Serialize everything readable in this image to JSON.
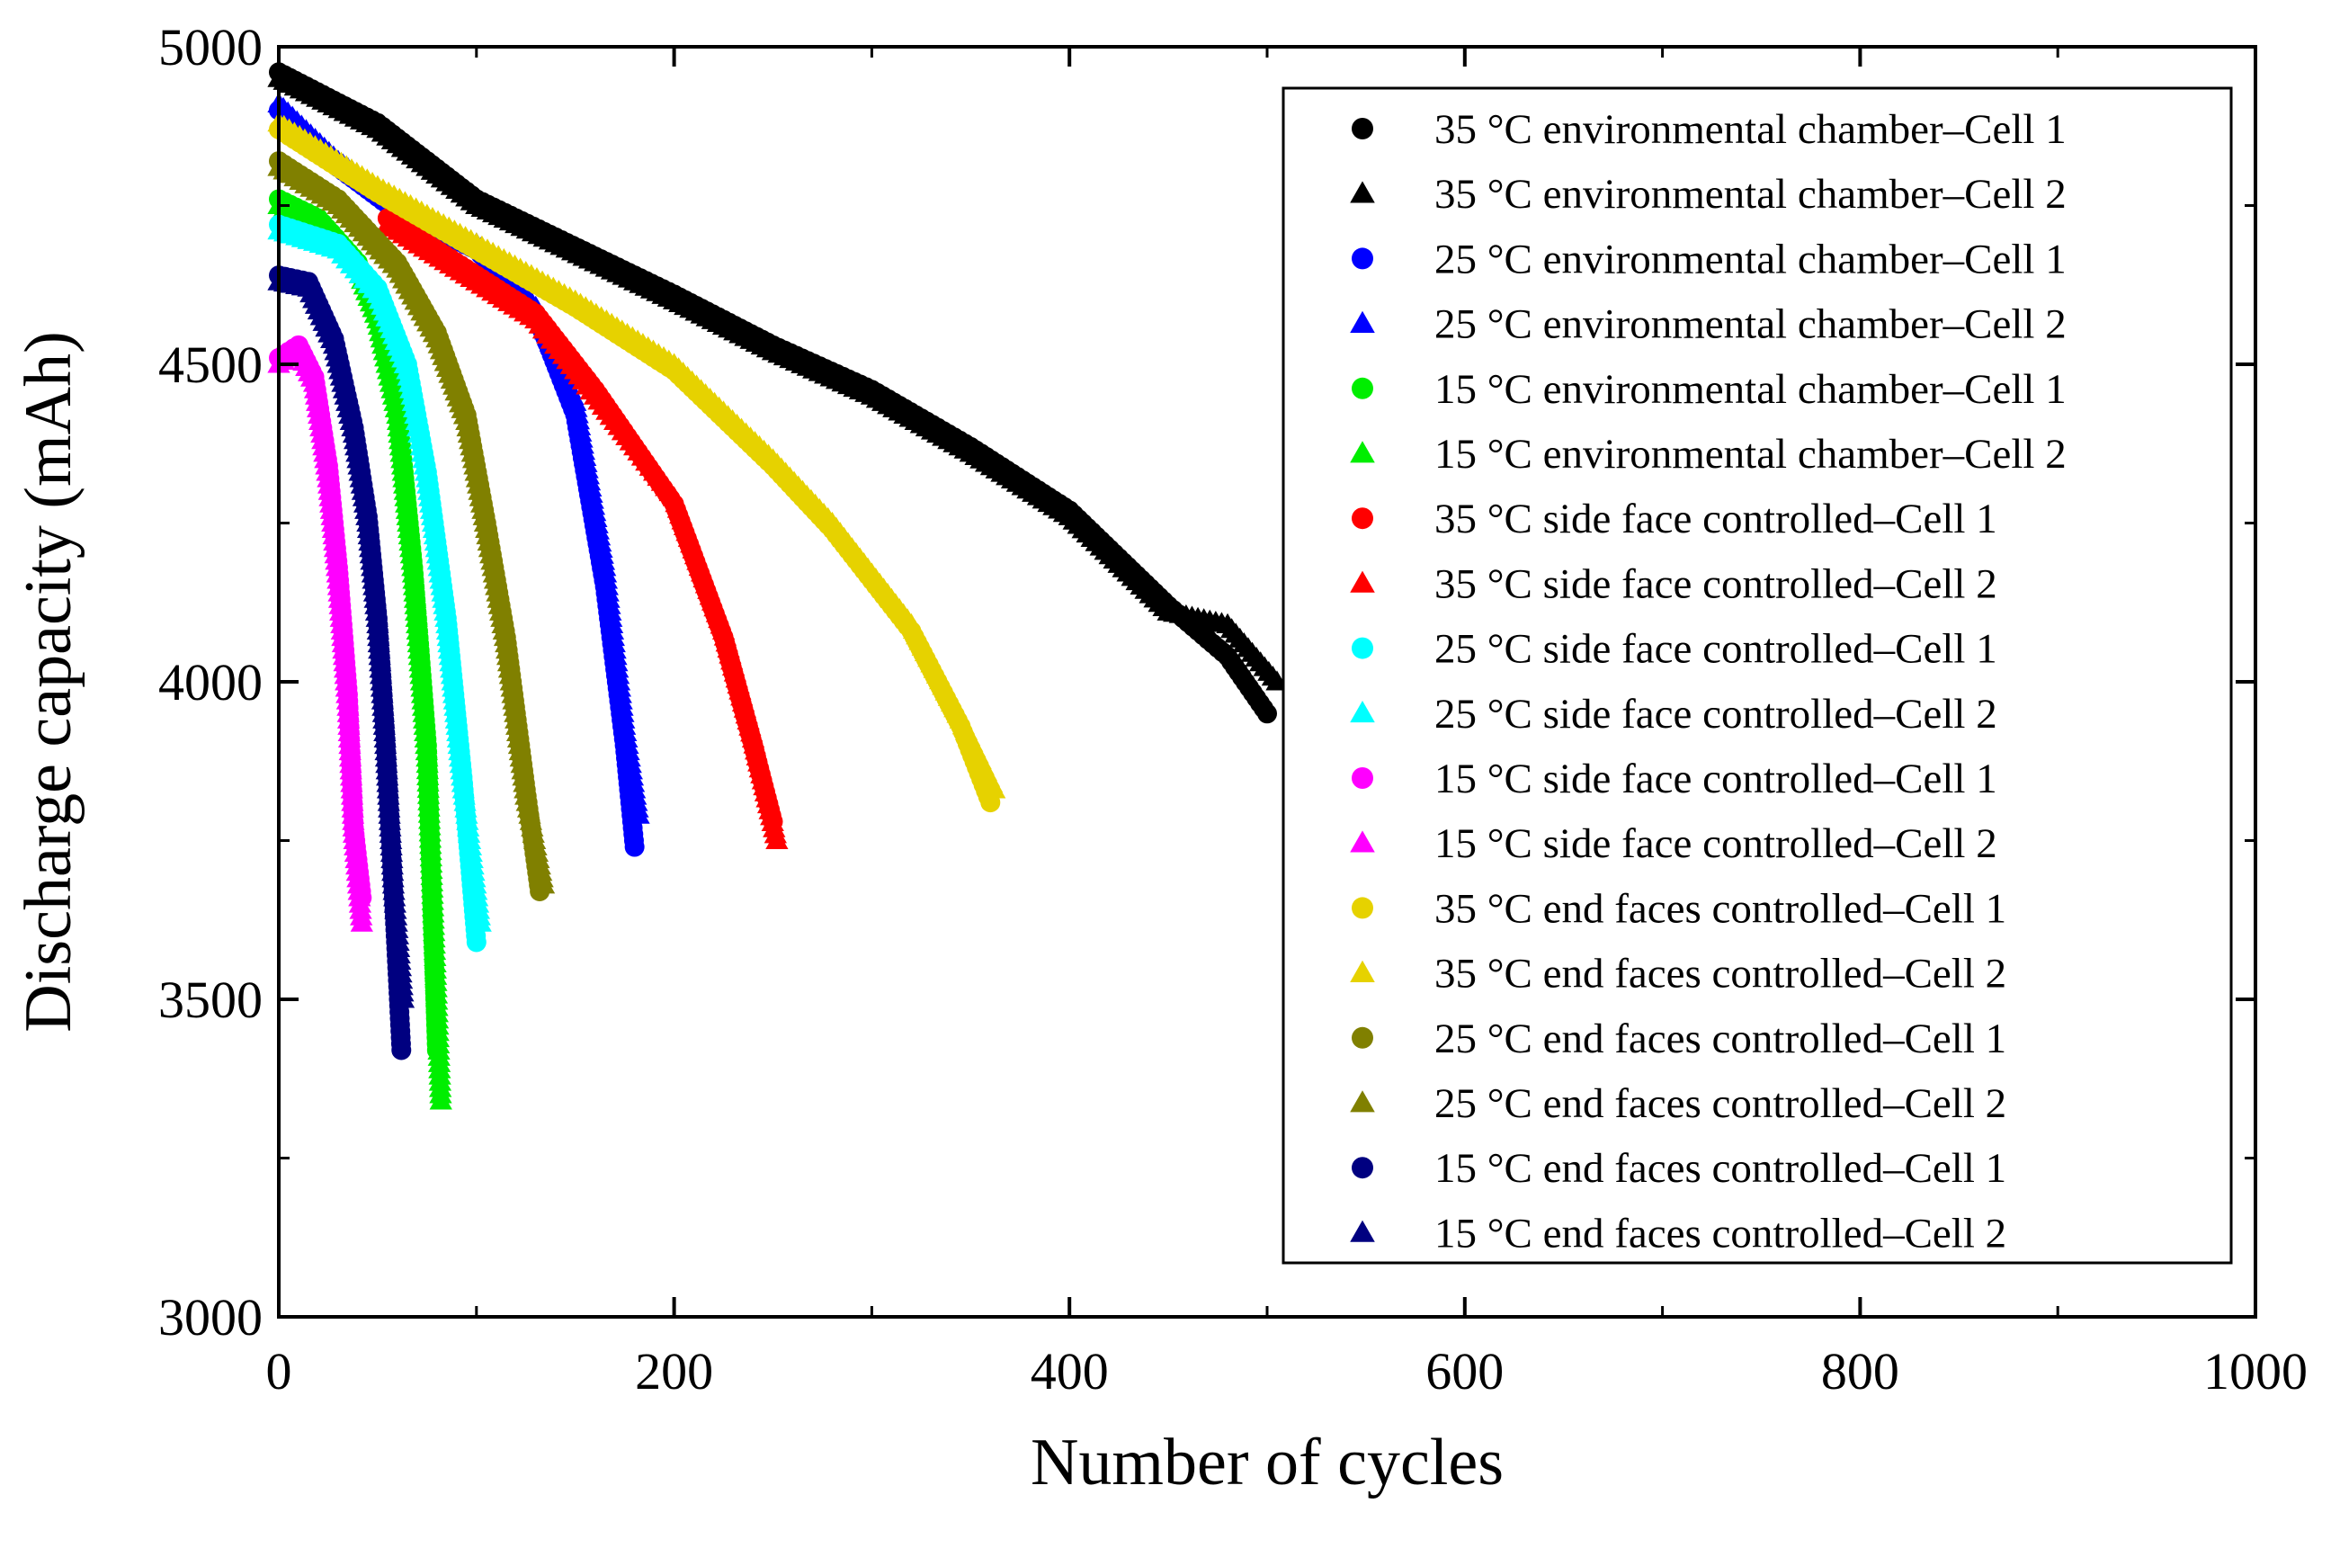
{
  "chart_data": {
    "type": "scatter",
    "title": "",
    "xlabel": "Number of cycles",
    "ylabel": "Discharge capacity (mAh)",
    "xlim": [
      0,
      1000
    ],
    "ylim": [
      3000,
      5000
    ],
    "xticks": [
      0,
      200,
      400,
      600,
      800,
      1000
    ],
    "yticks": [
      3000,
      3500,
      4000,
      4500,
      5000
    ],
    "grid": false,
    "legend_position": "top-right",
    "series": [
      {
        "name": "35 °C environmental chamber–Cell 1",
        "color": "#000000",
        "marker": "circle",
        "points": [
          [
            0,
            4960
          ],
          [
            50,
            4880
          ],
          [
            100,
            4760
          ],
          [
            200,
            4610
          ],
          [
            250,
            4530
          ],
          [
            300,
            4460
          ],
          [
            350,
            4370
          ],
          [
            400,
            4270
          ],
          [
            450,
            4120
          ],
          [
            480,
            4040
          ],
          [
            500,
            3950
          ]
        ]
      },
      {
        "name": "35 °C environmental chamber–Cell 2",
        "color": "#000000",
        "marker": "triangle",
        "points": [
          [
            0,
            4950
          ],
          [
            50,
            4870
          ],
          [
            100,
            4750
          ],
          [
            200,
            4600
          ],
          [
            250,
            4520
          ],
          [
            300,
            4450
          ],
          [
            350,
            4360
          ],
          [
            400,
            4260
          ],
          [
            450,
            4110
          ],
          [
            480,
            4090
          ],
          [
            505,
            4000
          ]
        ]
      },
      {
        "name": "25 °C environmental chamber–Cell 1",
        "color": "#0000ff",
        "marker": "circle",
        "points": [
          [
            0,
            4900
          ],
          [
            30,
            4810
          ],
          [
            60,
            4740
          ],
          [
            100,
            4680
          ],
          [
            130,
            4580
          ],
          [
            150,
            4420
          ],
          [
            165,
            4150
          ],
          [
            175,
            3900
          ],
          [
            180,
            3740
          ]
        ]
      },
      {
        "name": "25 °C environmental chamber–Cell 2",
        "color": "#0000ff",
        "marker": "triangle",
        "points": [
          [
            0,
            4910
          ],
          [
            30,
            4820
          ],
          [
            60,
            4750
          ],
          [
            100,
            4690
          ],
          [
            130,
            4590
          ],
          [
            150,
            4440
          ],
          [
            165,
            4180
          ],
          [
            175,
            3930
          ],
          [
            182,
            3790
          ]
        ]
      },
      {
        "name": "15 °C environmental chamber–Cell 1",
        "color": "#00ee00",
        "marker": "circle",
        "points": [
          [
            0,
            4760
          ],
          [
            20,
            4730
          ],
          [
            40,
            4660
          ],
          [
            50,
            4580
          ],
          [
            60,
            4430
          ],
          [
            68,
            4180
          ],
          [
            75,
            3900
          ],
          [
            80,
            3420
          ]
        ]
      },
      {
        "name": "15 °C environmental chamber–Cell 2",
        "color": "#00ee00",
        "marker": "triangle",
        "points": [
          [
            0,
            4750
          ],
          [
            20,
            4720
          ],
          [
            40,
            4650
          ],
          [
            50,
            4570
          ],
          [
            60,
            4420
          ],
          [
            68,
            4170
          ],
          [
            75,
            3880
          ],
          [
            82,
            3340
          ]
        ]
      },
      {
        "name": "35 °C side face controlled–Cell 1",
        "color": "#ff0000",
        "marker": "circle",
        "points": [
          [
            55,
            4730
          ],
          [
            100,
            4640
          ],
          [
            130,
            4580
          ],
          [
            160,
            4460
          ],
          [
            200,
            4280
          ],
          [
            225,
            4070
          ],
          [
            240,
            3900
          ],
          [
            250,
            3780
          ]
        ]
      },
      {
        "name": "35 °C side face controlled–Cell 2",
        "color": "#ff0000",
        "marker": "triangle",
        "points": [
          [
            55,
            4720
          ],
          [
            100,
            4630
          ],
          [
            130,
            4570
          ],
          [
            160,
            4450
          ],
          [
            200,
            4290
          ],
          [
            225,
            4080
          ],
          [
            240,
            3910
          ],
          [
            252,
            3750
          ]
        ]
      },
      {
        "name": "25 °C side face controlled–Cell 1",
        "color": "#00ffff",
        "marker": "circle",
        "points": [
          [
            0,
            4720
          ],
          [
            30,
            4690
          ],
          [
            50,
            4620
          ],
          [
            65,
            4500
          ],
          [
            75,
            4330
          ],
          [
            85,
            4100
          ],
          [
            93,
            3850
          ],
          [
            100,
            3590
          ]
        ]
      },
      {
        "name": "25 °C side face controlled–Cell 2",
        "color": "#00ffff",
        "marker": "triangle",
        "points": [
          [
            0,
            4710
          ],
          [
            30,
            4680
          ],
          [
            50,
            4610
          ],
          [
            65,
            4490
          ],
          [
            75,
            4320
          ],
          [
            85,
            4090
          ],
          [
            93,
            3840
          ],
          [
            102,
            3620
          ]
        ]
      },
      {
        "name": "15 °C side face controlled–Cell 1",
        "color": "#ff00ff",
        "marker": "circle",
        "points": [
          [
            0,
            4510
          ],
          [
            10,
            4530
          ],
          [
            18,
            4480
          ],
          [
            25,
            4340
          ],
          [
            30,
            4180
          ],
          [
            35,
            3980
          ],
          [
            38,
            3770
          ],
          [
            42,
            3660
          ]
        ]
      },
      {
        "name": "15 °C side face controlled–Cell 2",
        "color": "#ff00ff",
        "marker": "triangle",
        "points": [
          [
            0,
            4500
          ],
          [
            10,
            4520
          ],
          [
            18,
            4470
          ],
          [
            25,
            4320
          ],
          [
            30,
            4160
          ],
          [
            35,
            3960
          ],
          [
            38,
            3760
          ],
          [
            42,
            3620
          ]
        ]
      },
      {
        "name": "35 °C end faces controlled–Cell 1",
        "color": "#e6d200",
        "marker": "circle",
        "points": [
          [
            0,
            4870
          ],
          [
            50,
            4770
          ],
          [
            100,
            4680
          ],
          [
            150,
            4590
          ],
          [
            200,
            4490
          ],
          [
            250,
            4340
          ],
          [
            280,
            4240
          ],
          [
            320,
            4080
          ],
          [
            345,
            3930
          ],
          [
            360,
            3810
          ]
        ]
      },
      {
        "name": "35 °C end faces controlled–Cell 2",
        "color": "#e6d200",
        "marker": "triangle",
        "points": [
          [
            0,
            4880
          ],
          [
            50,
            4780
          ],
          [
            100,
            4690
          ],
          [
            150,
            4600
          ],
          [
            200,
            4500
          ],
          [
            250,
            4350
          ],
          [
            280,
            4250
          ],
          [
            320,
            4090
          ],
          [
            345,
            3940
          ],
          [
            362,
            3830
          ]
        ]
      },
      {
        "name": "25 °C end faces controlled–Cell 1",
        "color": "#808000",
        "marker": "circle",
        "points": [
          [
            0,
            4820
          ],
          [
            30,
            4760
          ],
          [
            60,
            4660
          ],
          [
            80,
            4550
          ],
          [
            95,
            4420
          ],
          [
            105,
            4250
          ],
          [
            115,
            4070
          ],
          [
            125,
            3830
          ],
          [
            132,
            3670
          ]
        ]
      },
      {
        "name": "25 °C end faces controlled–Cell 2",
        "color": "#808000",
        "marker": "triangle",
        "points": [
          [
            0,
            4810
          ],
          [
            30,
            4750
          ],
          [
            60,
            4650
          ],
          [
            80,
            4540
          ],
          [
            95,
            4410
          ],
          [
            105,
            4240
          ],
          [
            115,
            4060
          ],
          [
            125,
            3820
          ],
          [
            134,
            3680
          ]
        ]
      },
      {
        "name": "15 °C end faces controlled–Cell 1",
        "color": "#000080",
        "marker": "circle",
        "points": [
          [
            0,
            4640
          ],
          [
            15,
            4630
          ],
          [
            28,
            4540
          ],
          [
            38,
            4400
          ],
          [
            45,
            4260
          ],
          [
            50,
            4100
          ],
          [
            54,
            3910
          ],
          [
            58,
            3670
          ],
          [
            62,
            3420
          ]
        ]
      },
      {
        "name": "15 °C end faces controlled–Cell 2",
        "color": "#000080",
        "marker": "triangle",
        "points": [
          [
            0,
            4630
          ],
          [
            15,
            4620
          ],
          [
            28,
            4530
          ],
          [
            38,
            4390
          ],
          [
            45,
            4250
          ],
          [
            50,
            4090
          ],
          [
            54,
            3900
          ],
          [
            58,
            3680
          ],
          [
            63,
            3500
          ]
        ]
      }
    ]
  }
}
